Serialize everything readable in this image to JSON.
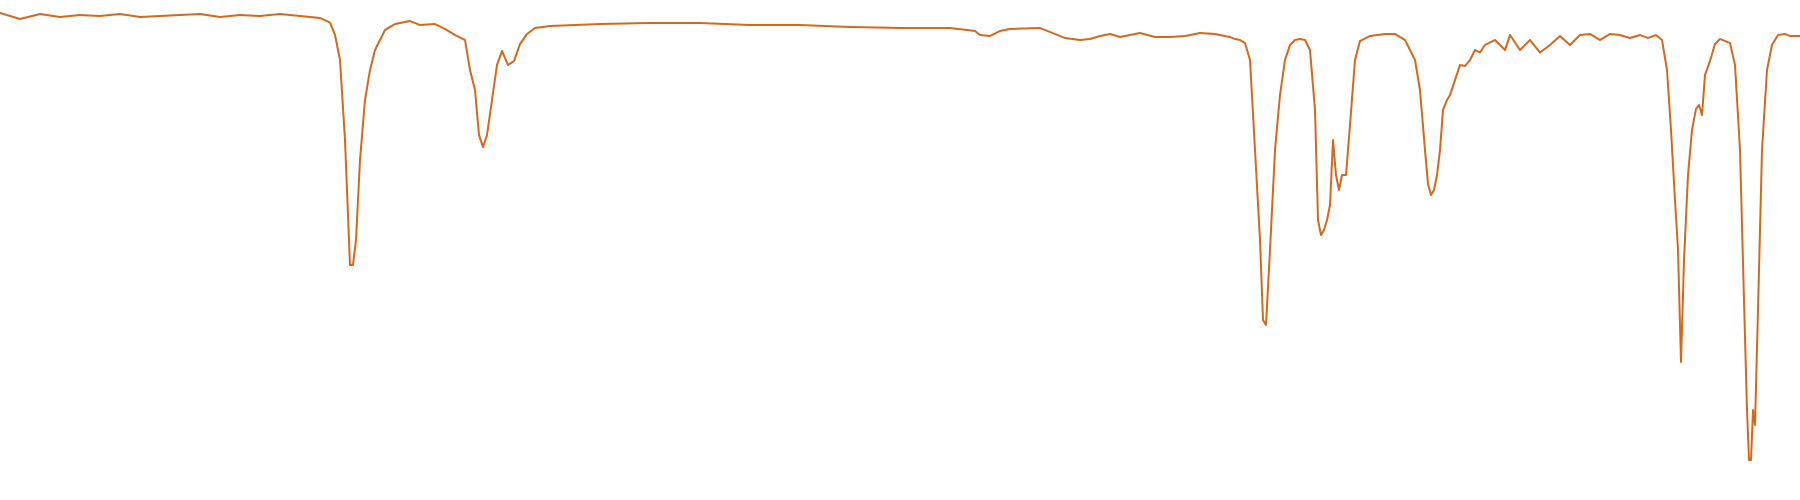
{
  "chart_data": {
    "type": "line",
    "title": "",
    "xlabel": "",
    "ylabel": "",
    "axes_visible": false,
    "grid": false,
    "legend": "none",
    "xlim": [
      0,
      1800
    ],
    "ylim": [
      0,
      1
    ],
    "line_color": "#d2691e",
    "series": [
      {
        "name": "",
        "points": [
          [
            0,
            0.974
          ],
          [
            20,
            0.962
          ],
          [
            40,
            0.972
          ],
          [
            60,
            0.966
          ],
          [
            80,
            0.97
          ],
          [
            100,
            0.968
          ],
          [
            120,
            0.972
          ],
          [
            140,
            0.966
          ],
          [
            160,
            0.968
          ],
          [
            180,
            0.97
          ],
          [
            200,
            0.972
          ],
          [
            220,
            0.966
          ],
          [
            240,
            0.97
          ],
          [
            260,
            0.968
          ],
          [
            280,
            0.972
          ],
          [
            300,
            0.968
          ],
          [
            320,
            0.964
          ],
          [
            330,
            0.955
          ],
          [
            335,
            0.93
          ],
          [
            340,
            0.88
          ],
          [
            345,
            0.72
          ],
          [
            350,
            0.47
          ],
          [
            353,
            0.47
          ],
          [
            356,
            0.52
          ],
          [
            360,
            0.68
          ],
          [
            365,
            0.8
          ],
          [
            370,
            0.86
          ],
          [
            375,
            0.9
          ],
          [
            380,
            0.92
          ],
          [
            385,
            0.94
          ],
          [
            395,
            0.952
          ],
          [
            410,
            0.958
          ],
          [
            420,
            0.95
          ],
          [
            435,
            0.952
          ],
          [
            445,
            0.942
          ],
          [
            455,
            0.93
          ],
          [
            465,
            0.92
          ],
          [
            470,
            0.86
          ],
          [
            475,
            0.82
          ],
          [
            479,
            0.73
          ],
          [
            483,
            0.706
          ],
          [
            487,
            0.73
          ],
          [
            492,
            0.8
          ],
          [
            497,
            0.87
          ],
          [
            502,
            0.898
          ],
          [
            508,
            0.87
          ],
          [
            514,
            0.878
          ],
          [
            520,
            0.912
          ],
          [
            527,
            0.932
          ],
          [
            535,
            0.944
          ],
          [
            550,
            0.948
          ],
          [
            600,
            0.952
          ],
          [
            650,
            0.954
          ],
          [
            700,
            0.954
          ],
          [
            750,
            0.95
          ],
          [
            800,
            0.95
          ],
          [
            850,
            0.946
          ],
          [
            900,
            0.944
          ],
          [
            950,
            0.944
          ],
          [
            975,
            0.938
          ],
          [
            980,
            0.93
          ],
          [
            990,
            0.928
          ],
          [
            1000,
            0.938
          ],
          [
            1010,
            0.942
          ],
          [
            1040,
            0.944
          ],
          [
            1055,
            0.932
          ],
          [
            1065,
            0.924
          ],
          [
            1080,
            0.92
          ],
          [
            1090,
            0.922
          ],
          [
            1100,
            0.928
          ],
          [
            1110,
            0.932
          ],
          [
            1120,
            0.926
          ],
          [
            1140,
            0.934
          ],
          [
            1155,
            0.926
          ],
          [
            1170,
            0.926
          ],
          [
            1185,
            0.928
          ],
          [
            1200,
            0.934
          ],
          [
            1215,
            0.932
          ],
          [
            1230,
            0.926
          ],
          [
            1235,
            0.922
          ],
          [
            1240,
            0.92
          ],
          [
            1245,
            0.914
          ],
          [
            1250,
            0.88
          ],
          [
            1255,
            0.7
          ],
          [
            1260,
            0.52
          ],
          [
            1263,
            0.36
          ],
          [
            1266,
            0.35
          ],
          [
            1270,
            0.5
          ],
          [
            1275,
            0.7
          ],
          [
            1280,
            0.81
          ],
          [
            1285,
            0.88
          ],
          [
            1290,
            0.91
          ],
          [
            1295,
            0.92
          ],
          [
            1300,
            0.922
          ],
          [
            1305,
            0.92
          ],
          [
            1310,
            0.9
          ],
          [
            1315,
            0.78
          ],
          [
            1318,
            0.56
          ],
          [
            1321,
            0.53
          ],
          [
            1324,
            0.54
          ],
          [
            1327,
            0.56
          ],
          [
            1330,
            0.59
          ],
          [
            1333,
            0.72
          ],
          [
            1336,
            0.65
          ],
          [
            1339,
            0.62
          ],
          [
            1342,
            0.65
          ],
          [
            1346,
            0.65
          ],
          [
            1350,
            0.75
          ],
          [
            1355,
            0.88
          ],
          [
            1360,
            0.918
          ],
          [
            1370,
            0.928
          ],
          [
            1385,
            0.932
          ],
          [
            1395,
            0.932
          ],
          [
            1405,
            0.92
          ],
          [
            1415,
            0.88
          ],
          [
            1420,
            0.82
          ],
          [
            1425,
            0.7
          ],
          [
            1428,
            0.632
          ],
          [
            1431,
            0.61
          ],
          [
            1434,
            0.62
          ],
          [
            1437,
            0.65
          ],
          [
            1440,
            0.7
          ],
          [
            1443,
            0.78
          ],
          [
            1447,
            0.8
          ],
          [
            1450,
            0.81
          ],
          [
            1455,
            0.84
          ],
          [
            1460,
            0.87
          ],
          [
            1465,
            0.868
          ],
          [
            1470,
            0.88
          ],
          [
            1475,
            0.9
          ],
          [
            1480,
            0.895
          ],
          [
            1485,
            0.91
          ],
          [
            1495,
            0.92
          ],
          [
            1505,
            0.9
          ],
          [
            1510,
            0.93
          ],
          [
            1520,
            0.9
          ],
          [
            1530,
            0.92
          ],
          [
            1540,
            0.895
          ],
          [
            1550,
            0.91
          ],
          [
            1560,
            0.928
          ],
          [
            1570,
            0.91
          ],
          [
            1580,
            0.93
          ],
          [
            1590,
            0.932
          ],
          [
            1600,
            0.92
          ],
          [
            1610,
            0.932
          ],
          [
            1620,
            0.93
          ],
          [
            1630,
            0.924
          ],
          [
            1640,
            0.93
          ],
          [
            1648,
            0.924
          ],
          [
            1656,
            0.93
          ],
          [
            1662,
            0.92
          ],
          [
            1667,
            0.86
          ],
          [
            1671,
            0.74
          ],
          [
            1675,
            0.6
          ],
          [
            1678,
            0.5
          ],
          [
            1681,
            0.276
          ],
          [
            1684,
            0.48
          ],
          [
            1688,
            0.65
          ],
          [
            1692,
            0.74
          ],
          [
            1696,
            0.782
          ],
          [
            1699,
            0.79
          ],
          [
            1702,
            0.77
          ],
          [
            1705,
            0.85
          ],
          [
            1710,
            0.878
          ],
          [
            1715,
            0.912
          ],
          [
            1720,
            0.922
          ],
          [
            1725,
            0.918
          ],
          [
            1730,
            0.914
          ],
          [
            1735,
            0.87
          ],
          [
            1740,
            0.7
          ],
          [
            1744,
            0.4
          ],
          [
            1747,
            0.18
          ],
          [
            1749,
            0.08
          ],
          [
            1751,
            0.08
          ],
          [
            1753,
            0.18
          ],
          [
            1755,
            0.15
          ],
          [
            1758,
            0.38
          ],
          [
            1762,
            0.7
          ],
          [
            1767,
            0.86
          ],
          [
            1772,
            0.91
          ],
          [
            1778,
            0.93
          ],
          [
            1785,
            0.932
          ],
          [
            1790,
            0.928
          ],
          [
            1800,
            0.928
          ]
        ]
      }
    ]
  }
}
